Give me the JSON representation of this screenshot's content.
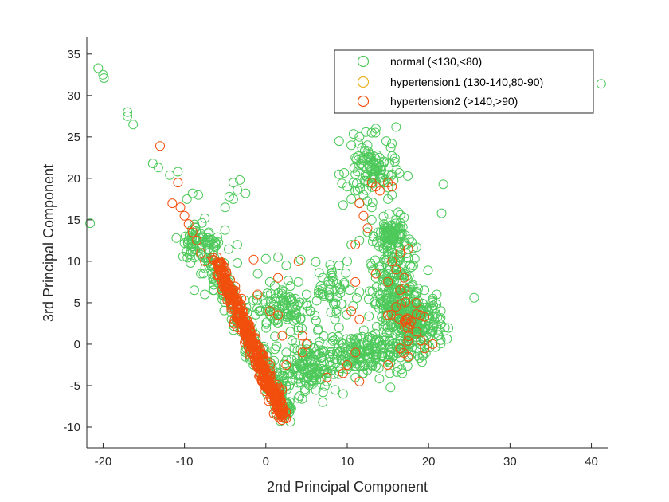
{
  "chart_data": {
    "type": "scatter",
    "xlabel": "2nd Principal Component",
    "ylabel": "3rd Principal Component",
    "xlim": [
      -22,
      42
    ],
    "ylim": [
      -12.5,
      37
    ],
    "xticks": [
      -20,
      -10,
      0,
      10,
      20,
      30,
      40
    ],
    "yticks": [
      -10,
      -5,
      0,
      5,
      10,
      15,
      20,
      25,
      30,
      35
    ],
    "grid": false,
    "legend_position": "top-right",
    "marker": "open-circle",
    "series": [
      {
        "name": "normal (<130,<80)",
        "color": "#4dc95a",
        "key_points": [
          [
            -20.6,
            33.3
          ],
          [
            -20.0,
            32.5
          ],
          [
            -19.9,
            32.1
          ],
          [
            -17.0,
            28.0
          ],
          [
            -17.0,
            27.5
          ],
          [
            -16.3,
            26.5
          ],
          [
            -21.6,
            14.6
          ],
          [
            -13.9,
            21.8
          ],
          [
            -13.2,
            21.3
          ],
          [
            -11.8,
            20.4
          ],
          [
            -10.8,
            20.8
          ],
          [
            -9.7,
            17.5
          ],
          [
            -9.0,
            18.2
          ],
          [
            -8.3,
            18.0
          ],
          [
            -4.5,
            17.8
          ],
          [
            -4.0,
            19.5
          ],
          [
            -3.2,
            19.8
          ],
          [
            -3.5,
            18.6
          ],
          [
            -2.5,
            18.2
          ],
          [
            -4.0,
            17.5
          ],
          [
            -5.0,
            16.5
          ],
          [
            -7.5,
            15.2
          ],
          [
            -7.0,
            13.5
          ],
          [
            -11.0,
            12.8
          ],
          [
            -10.0,
            12.2
          ],
          [
            -9.5,
            12.5
          ],
          [
            -9.0,
            11.2
          ],
          [
            -8.5,
            11.8
          ],
          [
            -8.0,
            10.8
          ],
          [
            -7.5,
            10.5
          ],
          [
            -7.0,
            9.5
          ],
          [
            -8.0,
            8.5
          ],
          [
            -6.5,
            8.0
          ],
          [
            -8.8,
            6.5
          ],
          [
            -7.5,
            6.0
          ],
          [
            -3.5,
            12.0
          ],
          [
            -3.5,
            9.8
          ],
          [
            -1.0,
            8.5
          ],
          [
            0.0,
            10.3
          ],
          [
            0.5,
            7.5
          ],
          [
            1.5,
            10.5
          ],
          [
            2.5,
            9.5
          ],
          [
            3.0,
            7.0
          ],
          [
            4.0,
            7.5
          ],
          [
            5.0,
            6.0
          ],
          [
            2.0,
            4.5
          ],
          [
            3.5,
            3.5
          ],
          [
            5.5,
            4.0
          ],
          [
            6.5,
            6.5
          ],
          [
            7.0,
            8.0
          ],
          [
            6.0,
            3.5
          ],
          [
            3.0,
            1.5
          ],
          [
            4.0,
            2.0
          ],
          [
            1.5,
            2.5
          ],
          [
            2.5,
            -1.0
          ],
          [
            3.5,
            -0.5
          ],
          [
            4.5,
            -1.5
          ],
          [
            5.5,
            -2.0
          ],
          [
            6.5,
            -3.5
          ],
          [
            7.5,
            -4.5
          ],
          [
            8.5,
            -5.5
          ],
          [
            9.5,
            -6.0
          ],
          [
            7.0,
            -7.0
          ],
          [
            4.0,
            -6.5
          ],
          [
            2.5,
            -5.0
          ],
          [
            3.5,
            -3.0
          ],
          [
            8.0,
            -2.5
          ],
          [
            9.0,
            -1.0
          ],
          [
            10.5,
            -1.0
          ],
          [
            11.5,
            -1.5
          ],
          [
            12.5,
            -0.5
          ],
          [
            13.0,
            -2.5
          ],
          [
            11.0,
            -4.0
          ],
          [
            12.0,
            -3.5
          ],
          [
            10.0,
            -3.0
          ],
          [
            13.5,
            0.5
          ],
          [
            14.5,
            0.8
          ],
          [
            15.5,
            2.0
          ],
          [
            16.5,
            1.0
          ],
          [
            17.5,
            0.0
          ],
          [
            18.5,
            -0.5
          ],
          [
            19.5,
            0.5
          ],
          [
            20.5,
            1.5
          ],
          [
            21.5,
            0.5
          ],
          [
            22.0,
            2.0
          ],
          [
            21.5,
            4.0
          ],
          [
            20.5,
            5.5
          ],
          [
            19.5,
            6.5
          ],
          [
            18.0,
            7.0
          ],
          [
            17.0,
            8.5
          ],
          [
            16.0,
            9.5
          ],
          [
            15.0,
            10.5
          ],
          [
            14.5,
            11.5
          ],
          [
            15.5,
            12.5
          ],
          [
            16.5,
            13.0
          ],
          [
            15.0,
            13.5
          ],
          [
            14.5,
            14.5
          ],
          [
            16.0,
            15.0
          ],
          [
            16.5,
            14.0
          ],
          [
            17.0,
            12.0
          ],
          [
            15.5,
            11.0
          ],
          [
            14.0,
            9.0
          ],
          [
            13.5,
            8.0
          ],
          [
            14.0,
            6.0
          ],
          [
            15.0,
            4.5
          ],
          [
            16.0,
            3.5
          ],
          [
            17.0,
            5.0
          ],
          [
            18.0,
            3.0
          ],
          [
            19.0,
            2.0
          ],
          [
            20.0,
            3.5
          ],
          [
            21.0,
            6.0
          ],
          [
            9.0,
            24.5
          ],
          [
            10.5,
            24.0
          ],
          [
            11.5,
            25.0
          ],
          [
            12.5,
            24.0
          ],
          [
            13.0,
            25.5
          ],
          [
            13.5,
            26.0
          ],
          [
            16.0,
            26.2
          ],
          [
            14.8,
            24.5
          ],
          [
            11.0,
            22.5
          ],
          [
            12.0,
            21.5
          ],
          [
            12.5,
            20.5
          ],
          [
            13.5,
            21.0
          ],
          [
            14.0,
            20.0
          ],
          [
            14.5,
            19.5
          ],
          [
            15.5,
            20.5
          ],
          [
            15.5,
            18.0
          ],
          [
            15.0,
            17.5
          ],
          [
            13.0,
            16.5
          ],
          [
            11.5,
            17.0
          ],
          [
            10.5,
            17.5
          ],
          [
            9.5,
            16.8
          ],
          [
            9.0,
            20.5
          ],
          [
            10.0,
            19.0
          ],
          [
            11.0,
            18.5
          ],
          [
            12.0,
            18.0
          ],
          [
            13.0,
            15.0
          ],
          [
            12.5,
            13.5
          ],
          [
            11.5,
            12.5
          ],
          [
            10.5,
            12.0
          ],
          [
            10.0,
            10.0
          ],
          [
            9.0,
            9.5
          ],
          [
            8.0,
            8.5
          ],
          [
            7.0,
            6.0
          ],
          [
            8.5,
            3.0
          ],
          [
            9.0,
            2.0
          ],
          [
            8.5,
            0.5
          ],
          [
            9.5,
            0.0
          ],
          [
            21.8,
            19.3
          ],
          [
            21.6,
            15.8
          ],
          [
            25.6,
            5.6
          ],
          [
            41.2,
            31.4
          ],
          [
            2.5,
            -8.5
          ],
          [
            -0.5,
            -3.0
          ],
          [
            1.0,
            -2.0
          ]
        ]
      },
      {
        "name": "hypertension1 (130-140,80-90)",
        "color": "#edb120",
        "key_points": []
      },
      {
        "name": "hypertension2 (>140,>90)",
        "color": "#f24e0d",
        "key_points": [
          [
            -13.0,
            23.9
          ],
          [
            -10.8,
            19.5
          ],
          [
            -11.5,
            17.0
          ],
          [
            -10.5,
            16.5
          ],
          [
            -10.0,
            15.5
          ],
          [
            -9.5,
            14.5
          ],
          [
            -9.0,
            13.5
          ],
          [
            -8.5,
            12.5
          ],
          [
            -8.0,
            11.0
          ],
          [
            -7.5,
            10.0
          ],
          [
            -6.0,
            10.5
          ],
          [
            -5.5,
            9.5
          ],
          [
            -5.0,
            8.0
          ],
          [
            -4.5,
            7.0
          ],
          [
            -3.0,
            5.5
          ],
          [
            -1.5,
            10.2
          ],
          [
            -1.0,
            6.0
          ],
          [
            0.5,
            4.0
          ],
          [
            1.5,
            8.0
          ],
          [
            1.5,
            3.5
          ],
          [
            2.0,
            1.0
          ],
          [
            4.0,
            10.0
          ],
          [
            4.5,
            1.0
          ],
          [
            5.0,
            0.0
          ],
          [
            4.5,
            -1.0
          ],
          [
            2.5,
            -2.5
          ],
          [
            2.0,
            -5.5
          ],
          [
            2.0,
            -8.0
          ],
          [
            1.5,
            -6.5
          ],
          [
            -0.5,
            -4.5
          ],
          [
            0.5,
            -2.5
          ],
          [
            -3.5,
            2.0
          ],
          [
            -2.5,
            1.5
          ],
          [
            -1.5,
            0.0
          ],
          [
            -2.0,
            -1.0
          ],
          [
            7.5,
            -4.0
          ],
          [
            9.5,
            -3.5
          ],
          [
            11.5,
            -4.5
          ],
          [
            15.0,
            -2.5
          ],
          [
            15.0,
            3.5
          ],
          [
            16.0,
            4.5
          ],
          [
            16.5,
            6.5
          ],
          [
            17.0,
            8.0
          ],
          [
            18.5,
            5.0
          ],
          [
            19.0,
            3.5
          ],
          [
            18.5,
            1.5
          ],
          [
            19.5,
            -0.5
          ],
          [
            20.5,
            0.0
          ],
          [
            17.5,
            -1.5
          ],
          [
            16.5,
            -0.5
          ],
          [
            13.0,
            19.5
          ],
          [
            13.5,
            19.0
          ],
          [
            15.0,
            19.5
          ],
          [
            15.5,
            19.0
          ],
          [
            14.0,
            18.5
          ],
          [
            11.5,
            17.0
          ],
          [
            12.0,
            15.5
          ],
          [
            12.5,
            14.0
          ],
          [
            11.0,
            12.0
          ],
          [
            11.0,
            7.5
          ],
          [
            10.5,
            4.0
          ],
          [
            11.5,
            3.0
          ],
          [
            10.0,
            -2.5
          ],
          [
            11.0,
            -1.0
          ],
          [
            13.5,
            8.5
          ],
          [
            15.5,
            10.0
          ],
          [
            16.5,
            11.0
          ],
          [
            15.0,
            7.5
          ],
          [
            16.0,
            9.0
          ],
          [
            17.5,
            11.5
          ]
        ]
      }
    ],
    "dense_clusters": [
      {
        "series": 0,
        "type": "band",
        "x": [
          -7.0,
          3.0
        ],
        "y": [
          10.5,
          -8.8
        ],
        "spread": 1.6,
        "count": 240
      },
      {
        "series": 2,
        "type": "band",
        "x": [
          -6.0,
          2.0
        ],
        "y": [
          10.0,
          -8.5
        ],
        "spread": 0.9,
        "count": 420
      },
      {
        "series": 0,
        "type": "blob",
        "cx": 16.0,
        "cy": 5.0,
        "rx": 3.0,
        "ry": 6.5,
        "count": 240
      },
      {
        "series": 0,
        "type": "blob",
        "cx": 19.0,
        "cy": 2.5,
        "rx": 2.5,
        "ry": 3.5,
        "count": 140
      },
      {
        "series": 0,
        "type": "blob",
        "cx": 15.5,
        "cy": 13.0,
        "rx": 1.8,
        "ry": 2.0,
        "count": 90
      },
      {
        "series": 0,
        "type": "blob",
        "cx": 13.0,
        "cy": 21.0,
        "rx": 3.0,
        "ry": 3.5,
        "count": 90
      },
      {
        "series": 0,
        "type": "blob",
        "cx": 11.5,
        "cy": -1.0,
        "rx": 5.5,
        "ry": 2.2,
        "count": 160
      },
      {
        "series": 0,
        "type": "blob",
        "cx": 5.0,
        "cy": -3.0,
        "rx": 3.0,
        "ry": 3.0,
        "count": 120
      },
      {
        "series": 0,
        "type": "blob",
        "cx": 2.0,
        "cy": 4.5,
        "rx": 3.5,
        "ry": 3.0,
        "count": 90
      },
      {
        "series": 0,
        "type": "blob",
        "cx": 8.5,
        "cy": 6.0,
        "rx": 2.5,
        "ry": 4.0,
        "count": 50
      },
      {
        "series": 0,
        "type": "blob",
        "cx": -8.0,
        "cy": 12.5,
        "rx": 2.5,
        "ry": 2.5,
        "count": 60
      },
      {
        "series": 2,
        "type": "blob",
        "cx": 17.5,
        "cy": 3.0,
        "rx": 1.8,
        "ry": 3.0,
        "count": 20
      }
    ]
  }
}
